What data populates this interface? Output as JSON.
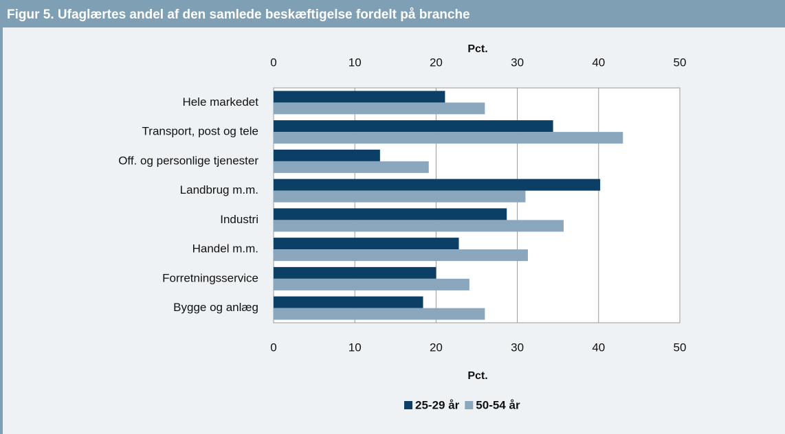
{
  "chart_data": {
    "type": "hbar",
    "title": "Figur 5. Ufaglærtes andel af den samlede beskæftigelse fordelt på branche",
    "xlabel": "Pct.",
    "categories": [
      "Hele markedet",
      "Transport, post og tele",
      "Off. og personlige tjenester",
      "Landbrug m.m.",
      "Industri",
      "Handel m.m.",
      "Forretningsservice",
      "Bygge og anlæg"
    ],
    "series": [
      {
        "name": "25-29 år",
        "color": "#0b3f66",
        "values": [
          21.1,
          34.4,
          13.1,
          40.2,
          28.7,
          22.8,
          20.0,
          18.4
        ]
      },
      {
        "name": "50-54 år",
        "color": "#8aa7bd",
        "values": [
          26.0,
          43.0,
          19.1,
          31.0,
          35.7,
          31.3,
          24.1,
          26.0
        ]
      }
    ],
    "xlim": [
      0,
      50
    ],
    "xticks": [
      0,
      10,
      20,
      30,
      40,
      50
    ],
    "grid": true,
    "legend": "bottom"
  }
}
